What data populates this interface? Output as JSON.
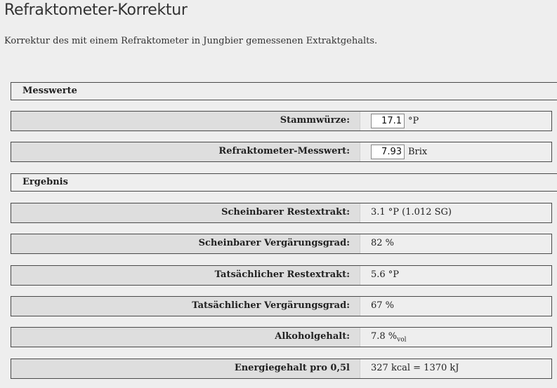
{
  "page": {
    "title": "Refraktometer-Korrektur",
    "intro": "Korrektur des mit einem Refraktometer in Jungbier gemessenen Extraktgehalts."
  },
  "measurements": {
    "header": "Messwerte",
    "original_gravity": {
      "label": "Stammwürze:",
      "value": "17.1",
      "unit": "°P"
    },
    "refractometer": {
      "label": "Refraktometer-Messwert:",
      "value": "7.93",
      "unit": "Brix"
    }
  },
  "results": {
    "header": "Ergebnis",
    "apparent_extract": {
      "label": "Scheinbarer Restextrakt:",
      "value": "3.1 °P (1.012 SG)"
    },
    "apparent_attenuation": {
      "label": "Scheinbarer Vergärungsgrad:",
      "value": "82 %"
    },
    "real_extract": {
      "label": "Tatsächlicher Restextrakt:",
      "value": "5.6 °P"
    },
    "real_attenuation": {
      "label": "Tatsächlicher Vergärungsgrad:",
      "value": "67 %"
    },
    "alcohol": {
      "label": "Alkoholgehalt:",
      "value": "7.8 %",
      "unit_sub": "vol"
    },
    "energy": {
      "label": "Energiegehalt pro 0,5l",
      "value": "327 kcal = 1370 kJ"
    }
  }
}
